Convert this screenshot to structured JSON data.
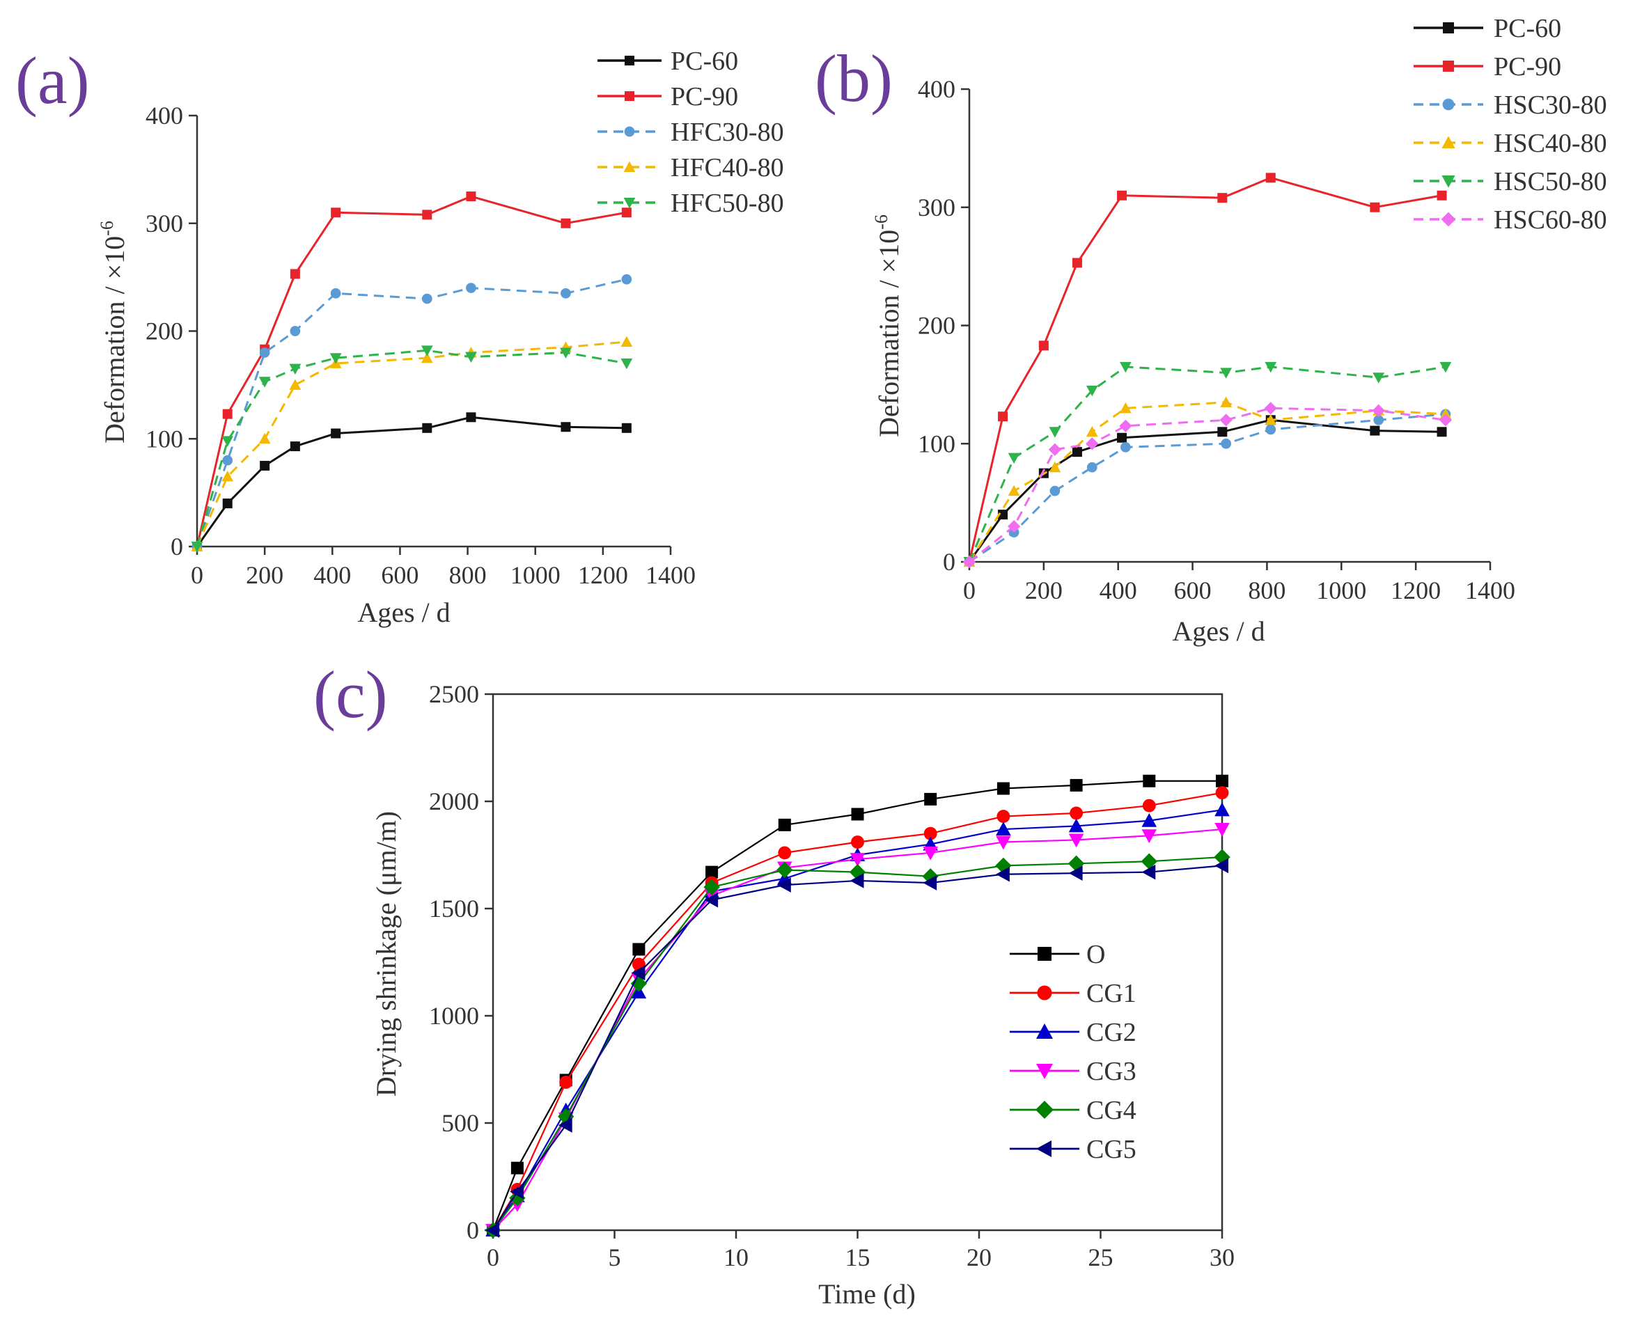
{
  "chart_data": [
    {
      "panel_label": "(a)",
      "type": "line",
      "xlabel": "Ages / d",
      "ylabel": "Deformation / ×10",
      "ylabel_sup": "-6",
      "xlim": [
        0,
        1400
      ],
      "ylim": [
        0,
        400
      ],
      "xticks": [
        0,
        200,
        400,
        600,
        800,
        1000,
        1200,
        1400
      ],
      "yticks": [
        0,
        100,
        200,
        300,
        400
      ],
      "legend_position": "top-right",
      "series": [
        {
          "name": "PC-60",
          "color": "#111111",
          "dash": "solid",
          "marker": "square",
          "x": [
            0,
            90,
            200,
            290,
            410,
            680,
            810,
            1090,
            1270
          ],
          "y": [
            0,
            40,
            75,
            93,
            105,
            110,
            120,
            111,
            110
          ]
        },
        {
          "name": "PC-90",
          "color": "#e8232a",
          "dash": "solid",
          "marker": "square",
          "x": [
            0,
            90,
            200,
            290,
            410,
            680,
            810,
            1090,
            1270
          ],
          "y": [
            0,
            123,
            183,
            253,
            310,
            308,
            325,
            300,
            310
          ]
        },
        {
          "name": "HFC30-80",
          "color": "#5b9bd5",
          "dash": "dash",
          "marker": "circle",
          "x": [
            0,
            90,
            200,
            290,
            410,
            680,
            810,
            1090,
            1270
          ],
          "y": [
            0,
            80,
            180,
            200,
            235,
            230,
            240,
            235,
            248
          ]
        },
        {
          "name": "HFC40-80",
          "color": "#f5b800",
          "dash": "dash",
          "marker": "triangle-up",
          "x": [
            0,
            90,
            200,
            290,
            410,
            680,
            810,
            1090,
            1270
          ],
          "y": [
            0,
            65,
            100,
            150,
            170,
            175,
            180,
            185,
            190
          ]
        },
        {
          "name": "HFC50-80",
          "color": "#2eb34a",
          "dash": "dash",
          "marker": "triangle-down",
          "x": [
            0,
            90,
            200,
            290,
            410,
            680,
            810,
            1090,
            1270
          ],
          "y": [
            0,
            98,
            153,
            165,
            175,
            182,
            176,
            180,
            170
          ]
        }
      ]
    },
    {
      "panel_label": "(b)",
      "type": "line",
      "xlabel": "Ages / d",
      "ylabel": "Deformation / ×10",
      "ylabel_sup": "-6",
      "xlim": [
        0,
        1400
      ],
      "ylim": [
        0,
        400
      ],
      "xticks": [
        0,
        200,
        400,
        600,
        800,
        1000,
        1200,
        1400
      ],
      "yticks": [
        0,
        100,
        200,
        300,
        400
      ],
      "legend_position": "top-right",
      "series": [
        {
          "name": "PC-60",
          "color": "#111111",
          "dash": "solid",
          "marker": "square",
          "x": [
            0,
            90,
            200,
            290,
            410,
            680,
            810,
            1090,
            1270
          ],
          "y": [
            0,
            40,
            75,
            93,
            105,
            110,
            120,
            111,
            110
          ]
        },
        {
          "name": "PC-90",
          "color": "#e8232a",
          "dash": "solid",
          "marker": "square",
          "x": [
            0,
            90,
            200,
            290,
            410,
            680,
            810,
            1090,
            1270
          ],
          "y": [
            0,
            123,
            183,
            253,
            310,
            308,
            325,
            300,
            310
          ]
        },
        {
          "name": "HSC30-80",
          "color": "#5b9bd5",
          "dash": "dash",
          "marker": "circle",
          "x": [
            0,
            120,
            230,
            330,
            420,
            690,
            810,
            1100,
            1280
          ],
          "y": [
            0,
            25,
            60,
            80,
            97,
            100,
            112,
            120,
            125
          ]
        },
        {
          "name": "HSC40-80",
          "color": "#f5b800",
          "dash": "dash",
          "marker": "triangle-up",
          "x": [
            0,
            120,
            230,
            330,
            420,
            690,
            810,
            1100,
            1280
          ],
          "y": [
            0,
            60,
            80,
            110,
            130,
            135,
            120,
            128,
            125
          ]
        },
        {
          "name": "HSC50-80",
          "color": "#2eb34a",
          "dash": "dash",
          "marker": "triangle-down",
          "x": [
            0,
            120,
            230,
            330,
            420,
            690,
            810,
            1100,
            1280
          ],
          "y": [
            0,
            88,
            110,
            145,
            165,
            160,
            165,
            156,
            165
          ]
        },
        {
          "name": "HSC60-80",
          "color": "#f06cf0",
          "dash": "dash",
          "marker": "diamond",
          "x": [
            0,
            120,
            230,
            330,
            420,
            690,
            810,
            1100,
            1280
          ],
          "y": [
            0,
            30,
            95,
            100,
            115,
            120,
            130,
            128,
            120
          ]
        }
      ]
    },
    {
      "panel_label": "(c)",
      "type": "line",
      "xlabel": "Time (d)",
      "ylabel": "Drying shrinkage (μm/m)",
      "xlim": [
        0,
        30
      ],
      "ylim": [
        0,
        2500
      ],
      "xticks": [
        0,
        5,
        10,
        15,
        20,
        25,
        30
      ],
      "yticks": [
        0,
        500,
        1000,
        1500,
        2000,
        2500
      ],
      "legend_position": "center-right",
      "series": [
        {
          "name": "O",
          "color": "#000000",
          "dash": "solid",
          "marker": "square",
          "x": [
            0,
            1,
            3,
            6,
            9,
            12,
            15,
            18,
            21,
            24,
            27,
            30
          ],
          "y": [
            0,
            290,
            700,
            1310,
            1670,
            1890,
            1940,
            2010,
            2060,
            2075,
            2095,
            2095
          ]
        },
        {
          "name": "CG1",
          "color": "#ff0000",
          "dash": "solid",
          "marker": "circle",
          "x": [
            0,
            1,
            3,
            6,
            9,
            12,
            15,
            18,
            21,
            24,
            27,
            30
          ],
          "y": [
            0,
            190,
            690,
            1240,
            1620,
            1760,
            1810,
            1850,
            1930,
            1945,
            1980,
            2040
          ]
        },
        {
          "name": "CG2",
          "color": "#0000cc",
          "dash": "solid",
          "marker": "triangle-up",
          "x": [
            0,
            1,
            3,
            6,
            9,
            12,
            15,
            18,
            21,
            24,
            27,
            30
          ],
          "y": [
            0,
            160,
            560,
            1110,
            1580,
            1640,
            1750,
            1800,
            1870,
            1885,
            1910,
            1960
          ]
        },
        {
          "name": "CG3",
          "color": "#ff00ff",
          "dash": "solid",
          "marker": "triangle-down",
          "x": [
            0,
            1,
            3,
            6,
            9,
            12,
            15,
            18,
            21,
            24,
            27,
            30
          ],
          "y": [
            0,
            120,
            520,
            1170,
            1560,
            1690,
            1730,
            1760,
            1810,
            1820,
            1840,
            1870
          ]
        },
        {
          "name": "CG4",
          "color": "#008000",
          "dash": "solid",
          "marker": "diamond",
          "x": [
            0,
            1,
            3,
            6,
            9,
            12,
            15,
            18,
            21,
            24,
            27,
            30
          ],
          "y": [
            0,
            150,
            530,
            1150,
            1600,
            1680,
            1670,
            1650,
            1700,
            1710,
            1720,
            1740
          ]
        },
        {
          "name": "CG5",
          "color": "#000080",
          "dash": "solid",
          "marker": "triangle-left",
          "x": [
            0,
            1,
            3,
            6,
            9,
            12,
            15,
            18,
            21,
            24,
            27,
            30
          ],
          "y": [
            0,
            180,
            490,
            1200,
            1540,
            1610,
            1630,
            1620,
            1660,
            1665,
            1670,
            1700
          ]
        }
      ]
    }
  ]
}
